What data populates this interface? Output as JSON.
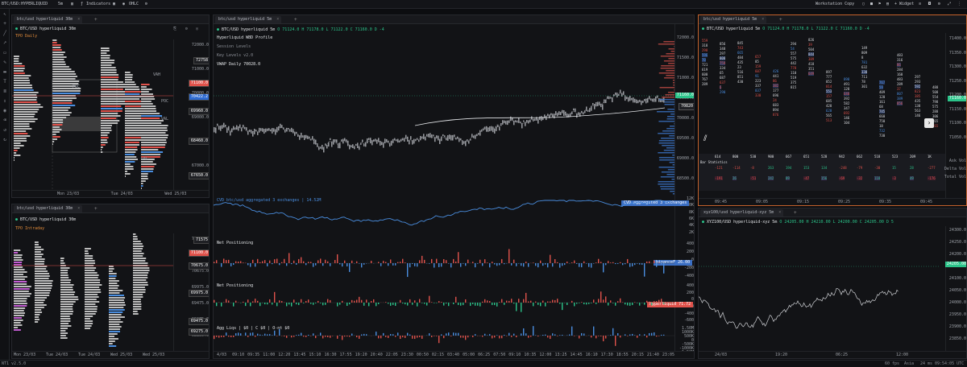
{
  "topbar": {
    "symbol": "BTC/USD:HYPERLIQUID",
    "interval": "5m",
    "indicators": "Indicators",
    "ohlc": "OHLC",
    "workstation": "Workstation Copy",
    "widget": "+ Widget"
  },
  "left_tools": [
    "cursor-icon",
    "crosshair-icon",
    "line-icon",
    "arrow-icon",
    "rect-icon",
    "brush-icon",
    "ruler-icon",
    "text-icon",
    "fib-icon",
    "measure-icon",
    "eye-icon",
    "trash-icon",
    "undo-icon",
    "redo-icon"
  ],
  "status": {
    "left": "NT1 v2.5.0",
    "fps": "60 fps",
    "region": "Asia",
    "latency": "24 ms",
    "time": "09:54:05 UTC"
  },
  "p1": {
    "tab": "btc/usd hyperliquid 30m",
    "legend": "BTC/USD hyperliquid 30m",
    "sub": "TPO Daily",
    "ticks": [
      "72000.0",
      "71000.0",
      "70000.0",
      "69000.0",
      "68000.0",
      "67000.0"
    ],
    "tags": [
      "72758",
      "71100.0",
      "70422.2",
      "69960.0",
      "68460.0",
      "67650.0"
    ],
    "xticks": [
      "Mon 23/03",
      "Tue 24/03",
      "Wed 25/03"
    ],
    "poc": "POC",
    "vah": "VAH",
    "val": "VAL"
  },
  "p2": {
    "tab": "btc/usd hyperliquid 5m",
    "legend_pre": "BTC/USD hyperliquid 5m",
    "o": "O 71124.0",
    "h": "H 71178.0",
    "l": "L 71122.0",
    "c": "C 71160.0",
    "d": "D -4",
    "lines": [
      "Hyperliquid WBD Profile",
      "Session Levels",
      "Key Levels v2.0",
      "VWAP Daily 70028.0"
    ],
    "ticks": [
      "72000.0",
      "71500.0",
      "71000.0",
      "70500.0",
      "70000.0",
      "69500.0",
      "69000.0",
      "68500.0"
    ],
    "price": "71160.0",
    "price2": "70820",
    "cvd_label": "CVD btc/usd aggregated 3 exchanges | 14.52M",
    "cvd_badge": "CVD aggregated 3 exchanges",
    "cvd_ticks": [
      "12K",
      "10K",
      "8K",
      "6K",
      "4K",
      "2K"
    ],
    "np1_label": "Net Positioning",
    "np1_badge": "binanceF  26.00",
    "np1_ticks": [
      "400",
      "200",
      "0",
      "-200",
      "-400"
    ],
    "np2_label": "Net Positioning",
    "np2_badge": "hyperliquid 71.72",
    "np2_ticks": [
      "400",
      "200",
      "0",
      "-200",
      "-400",
      "-600"
    ],
    "agg_label": "Agg Liqs | $0 | C $0 | O-nt $0",
    "agg_ticks": [
      "1.50M",
      "1000K",
      "500K",
      "0",
      "-500K",
      "-1000K",
      "-1.50M",
      "-2M"
    ],
    "xticks": [
      "4/03",
      "09:10",
      "09:35",
      "11:00",
      "12:20",
      "13:45",
      "15:10",
      "16:30",
      "17:55",
      "19:20",
      "20:40",
      "22:05",
      "23:30",
      "00:50",
      "02:15",
      "03:40",
      "05:00",
      "06:25",
      "07:50",
      "09:10",
      "10:35",
      "12:00",
      "13:25",
      "14:45",
      "16:10",
      "17:30",
      "18:55",
      "20:15",
      "21:40",
      "23:05"
    ]
  },
  "p3": {
    "tab": "btc/usd hyperliquid 5m",
    "legend_pre": "BTC/USD hyperliquid 5m",
    "o": "O 71124.0",
    "h": "H 71178.0",
    "l": "L 71122.0",
    "c": "C 71160.0",
    "d": "D -4",
    "ticks": [
      "71400.0",
      "71350.0",
      "71300.0",
      "71250.0",
      "71200.0",
      "71150.0",
      "71100.0",
      "71050.0"
    ],
    "price": "71160.0",
    "stats_label": "Bar Statistics",
    "row1": [
      "-121",
      "-114",
      "-8",
      "263",
      "194",
      "153",
      "134",
      "-248",
      "-79",
      "-30",
      "15",
      "28",
      "-277"
    ],
    "row2": [
      "-191",
      "26",
      "-51",
      "242",
      "89",
      "-47",
      "156",
      "-69",
      "-32",
      "118",
      "-3",
      "49",
      "-176"
    ],
    "row0": [
      "614",
      "800",
      "530",
      "900",
      "667",
      "651",
      "528",
      "942",
      "662",
      "518",
      "523",
      "209",
      "1K"
    ],
    "side": [
      "Ask Vol",
      "Delta Vol",
      "Total Vol"
    ],
    "xticks": [
      "09:45",
      "09:05",
      "09:15",
      "09:25",
      "09:35",
      "09:45"
    ]
  },
  "p4": {
    "tab": "btc/usd hyperliquid 30m",
    "legend": "BTC/USD hyperliquid 30m",
    "sub": "TPO Intraday",
    "ticks": [
      "71575.0",
      "71050.0",
      "70675.0",
      "69975.0",
      "69475.0",
      "69275.0",
      "68850.0"
    ],
    "tags": [
      "71575",
      "71100.0",
      "70675.0",
      "69975.0",
      "69475.0",
      "69275.0"
    ],
    "xticks": [
      "Mon 23/03",
      "Tue 24/03",
      "Tue 24/03",
      "Wed 25/03",
      "Wed 25/03"
    ]
  },
  "p5": {
    "tab": "xyz100/usd hyperliquid-xyz 5m",
    "legend_pre": "XYZ100/USD hyperliquid-xyz 5m",
    "o": "O 24205.00",
    "h": "H 24210.00",
    "l": "L 24200.00",
    "c": "C 24205.00",
    "d": "D 5",
    "ticks": [
      "24300.0",
      "24250.0",
      "24200.0",
      "24150.0",
      "24100.0",
      "24050.0",
      "24000.0",
      "23950.0",
      "23900.0",
      "23850.0"
    ],
    "price": "24205.00",
    "xticks": [
      "24/03",
      "19:20",
      "06:25",
      "12:00"
    ]
  },
  "colors": {
    "accent": "#c3622c",
    "up": "#2bc48a",
    "down": "#e0524b",
    "blue": "#4a8ee0"
  }
}
